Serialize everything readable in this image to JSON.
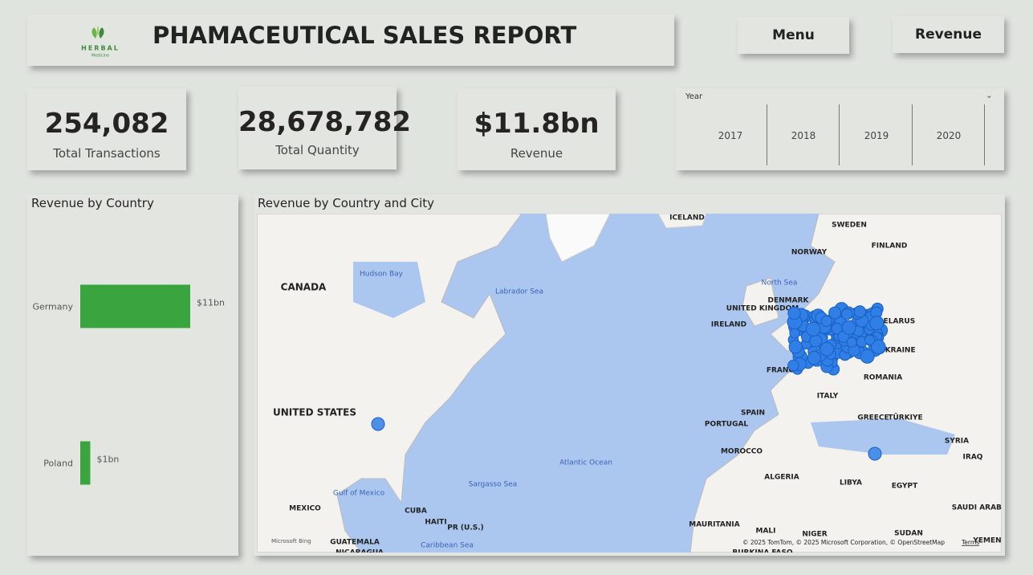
{
  "header": {
    "logo_text": "HERBAL",
    "logo_subtext": "Medicine",
    "title": "PHAMACEUTICAL SALES REPORT"
  },
  "buttons": [
    "Menu",
    "Revenue"
  ],
  "kpis": [
    {
      "value": "254,082",
      "label": "Total Transactions"
    },
    {
      "value": "28,678,782",
      "label": "Total Quantity"
    },
    {
      "value": "$11.8bn",
      "label": "Revenue"
    }
  ],
  "slicer": {
    "title": "Year",
    "options": [
      "2017",
      "2018",
      "2019",
      "2020"
    ]
  },
  "chart_data": {
    "type": "bar",
    "orientation": "horizontal",
    "title": "Revenue by Country",
    "categories": [
      "Germany",
      "Poland"
    ],
    "values": [
      11,
      1
    ],
    "value_labels": [
      "$11bn",
      "$1bn"
    ],
    "color": "#3aa53f"
  },
  "map": {
    "title": "Revenue by Country and City",
    "labels": [
      "ICELAND",
      "SWEDEN",
      "FINLAND",
      "NORWAY",
      "CANADA",
      "Hudson Bay",
      "Labrador Sea",
      "North Sea",
      "DENMARK",
      "UNITED KINGDOM",
      "IRELAND",
      "BELARUS",
      "UKRAINE",
      "FRANCE",
      "ROMANIA",
      "ITALY",
      "SPAIN",
      "PORTUGAL",
      "GREECE",
      "TÜRKIYE",
      "SYRIA",
      "IRAQ",
      "MOROCCO",
      "ALGERIA",
      "LIBYA",
      "EGYPT",
      "UNITED STATES",
      "Atlantic Ocean",
      "Sargasso Sea",
      "Gulf of Mexico",
      "MEXICO",
      "CUBA",
      "HAITI",
      "PR (U.S.)",
      "GUATEMALA",
      "Caribbean Sea",
      "NICARAGUA",
      "MAURITANIA",
      "MALI",
      "NIGER",
      "SUDAN",
      "YEMEN",
      "SAUDI ARABIA",
      "BURKINA FASO"
    ],
    "brand": "Microsoft Bing",
    "attribution": "© 2025 TomTom, © 2025 Microsoft Corporation, © OpenStreetMap",
    "terms": "Terms"
  }
}
